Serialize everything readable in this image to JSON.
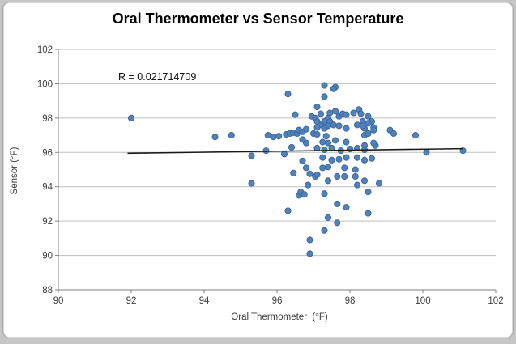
{
  "chart_data": {
    "type": "scatter",
    "title": "Oral Thermometer vs Sensor Temperature",
    "xlabel": "Oral Thermometer  (°F)",
    "ylabel": "Sensor (°F)",
    "annotation": "R = 0.021714709",
    "xlim": [
      90,
      102
    ],
    "ylim": [
      88,
      102
    ],
    "xticks": [
      90,
      92,
      94,
      96,
      98,
      100,
      102
    ],
    "yticks": [
      88,
      90,
      92,
      94,
      96,
      98,
      100,
      102
    ],
    "grid": "horizontal-only",
    "legend": "none",
    "marker_color": "#4F81BD",
    "marker_edge_color": "#3A6597",
    "gridline_color": "#bfbfbf",
    "axis_color": "#808080",
    "trendline": {
      "color": "#1a1a1a",
      "x1": 91.9,
      "y1": 95.95,
      "x2": 101.1,
      "y2": 96.22
    },
    "points": [
      [
        92.0,
        98.0
      ],
      [
        94.3,
        96.9
      ],
      [
        94.75,
        97.0
      ],
      [
        95.3,
        95.8
      ],
      [
        95.3,
        94.2
      ],
      [
        95.75,
        97.0
      ],
      [
        95.7,
        96.1
      ],
      [
        95.9,
        96.9
      ],
      [
        96.05,
        96.95
      ],
      [
        96.2,
        95.9
      ],
      [
        96.25,
        97.05
      ],
      [
        96.3,
        99.4
      ],
      [
        96.35,
        97.1
      ],
      [
        96.45,
        97.15
      ],
      [
        96.5,
        98.2
      ],
      [
        96.55,
        97.1
      ],
      [
        96.6,
        97.3
      ],
      [
        96.45,
        94.8
      ],
      [
        96.6,
        93.5
      ],
      [
        96.65,
        93.7
      ],
      [
        96.3,
        92.6
      ],
      [
        96.7,
        97.2
      ],
      [
        96.7,
        96.75
      ],
      [
        96.75,
        93.55
      ],
      [
        96.8,
        97.35
      ],
      [
        96.8,
        96.55
      ],
      [
        96.8,
        95.1
      ],
      [
        96.85,
        94.1
      ],
      [
        96.9,
        94.75
      ],
      [
        96.9,
        90.9
      ],
      [
        96.9,
        90.1
      ],
      [
        96.7,
        95.5
      ],
      [
        96.4,
        96.3
      ],
      [
        97.0,
        97.1
      ],
      [
        97.05,
        94.6
      ],
      [
        96.95,
        98.1
      ],
      [
        97.05,
        98.0
      ],
      [
        97.1,
        98.65
      ],
      [
        97.3,
        99.9
      ],
      [
        97.6,
        99.8
      ],
      [
        97.55,
        99.7
      ],
      [
        97.3,
        99.25
      ],
      [
        97.2,
        98.25
      ],
      [
        97.45,
        98.3
      ],
      [
        97.6,
        98.4
      ],
      [
        97.4,
        98.0
      ],
      [
        97.3,
        97.8
      ],
      [
        97.1,
        97.8
      ],
      [
        97.45,
        97.8
      ],
      [
        97.2,
        97.6
      ],
      [
        97.4,
        97.55
      ],
      [
        97.55,
        97.6
      ],
      [
        97.1,
        97.45
      ],
      [
        97.3,
        97.4
      ],
      [
        97.1,
        97.05
      ],
      [
        97.35,
        96.95
      ],
      [
        97.25,
        96.6
      ],
      [
        97.4,
        96.55
      ],
      [
        97.6,
        96.7
      ],
      [
        97.1,
        96.25
      ],
      [
        97.3,
        96.15
      ],
      [
        97.5,
        96.25
      ],
      [
        97.25,
        95.7
      ],
      [
        97.5,
        95.55
      ],
      [
        97.25,
        95.1
      ],
      [
        97.4,
        95.15
      ],
      [
        97.1,
        94.7
      ],
      [
        97.4,
        94.35
      ],
      [
        97.3,
        93.6
      ],
      [
        97.3,
        91.45
      ],
      [
        97.65,
        91.9
      ],
      [
        97.4,
        92.2
      ],
      [
        97.65,
        93.0
      ],
      [
        97.7,
        98.1
      ],
      [
        97.8,
        98.25
      ],
      [
        97.9,
        98.2
      ],
      [
        97.7,
        97.55
      ],
      [
        97.9,
        97.4
      ],
      [
        97.9,
        96.6
      ],
      [
        97.75,
        96.1
      ],
      [
        98.0,
        96.2
      ],
      [
        97.7,
        95.6
      ],
      [
        97.9,
        95.7
      ],
      [
        97.85,
        95.1
      ],
      [
        97.65,
        94.6
      ],
      [
        97.85,
        94.6
      ],
      [
        97.9,
        92.8
      ],
      [
        98.1,
        98.3
      ],
      [
        98.25,
        98.5
      ],
      [
        98.3,
        98.25
      ],
      [
        98.35,
        97.8
      ],
      [
        98.5,
        98.1
      ],
      [
        98.6,
        97.8
      ],
      [
        98.65,
        97.45
      ],
      [
        98.4,
        97.4
      ],
      [
        98.4,
        97.0
      ],
      [
        98.5,
        97.1
      ],
      [
        98.2,
        97.6
      ],
      [
        98.35,
        97.55
      ],
      [
        98.5,
        97.7
      ],
      [
        98.65,
        97.3
      ],
      [
        98.15,
        95.0
      ],
      [
        98.4,
        96.4
      ],
      [
        98.2,
        96.25
      ],
      [
        98.4,
        96.15
      ],
      [
        98.7,
        96.4
      ],
      [
        98.65,
        96.55
      ],
      [
        98.2,
        95.7
      ],
      [
        98.4,
        95.55
      ],
      [
        98.6,
        95.65
      ],
      [
        98.2,
        94.1
      ],
      [
        98.4,
        94.35
      ],
      [
        98.8,
        94.2
      ],
      [
        98.5,
        93.7
      ],
      [
        98.5,
        92.45
      ],
      [
        98.15,
        94.6
      ],
      [
        99.1,
        97.3
      ],
      [
        99.2,
        97.1
      ],
      [
        99.8,
        97.0
      ],
      [
        100.1,
        96.0
      ],
      [
        101.1,
        96.1
      ]
    ]
  }
}
